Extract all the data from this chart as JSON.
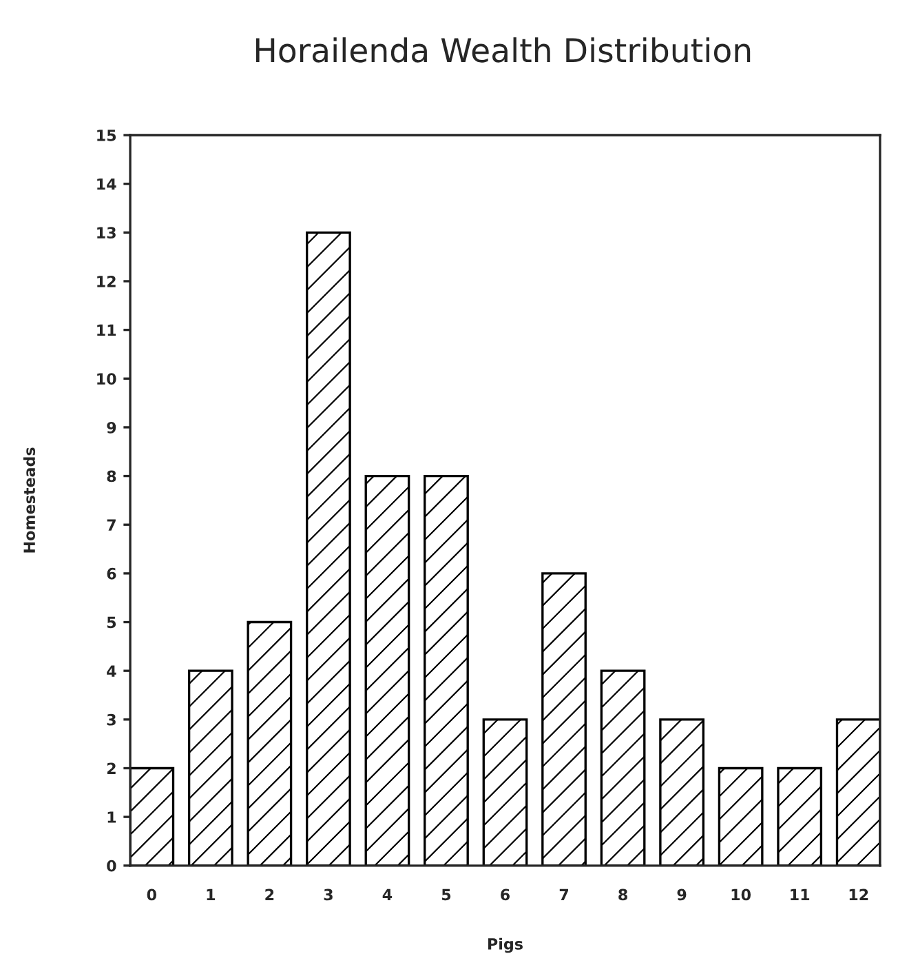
{
  "chart_data": {
    "type": "bar",
    "title": "Horailenda Wealth Distribution",
    "xlabel": "Pigs",
    "ylabel": "Homesteads",
    "categories": [
      "0",
      "1",
      "2",
      "3",
      "4",
      "5",
      "6",
      "7",
      "8",
      "9",
      "10",
      "11",
      "12"
    ],
    "values": [
      2,
      4,
      5,
      13,
      8,
      8,
      3,
      6,
      4,
      3,
      2,
      2,
      3
    ],
    "color": "#000000",
    "ylim": [
      0,
      15
    ],
    "yticks": [
      0,
      1,
      2,
      3,
      4,
      5,
      6,
      7,
      8,
      9,
      10,
      11,
      12,
      13,
      14,
      15
    ],
    "grid": false
  }
}
